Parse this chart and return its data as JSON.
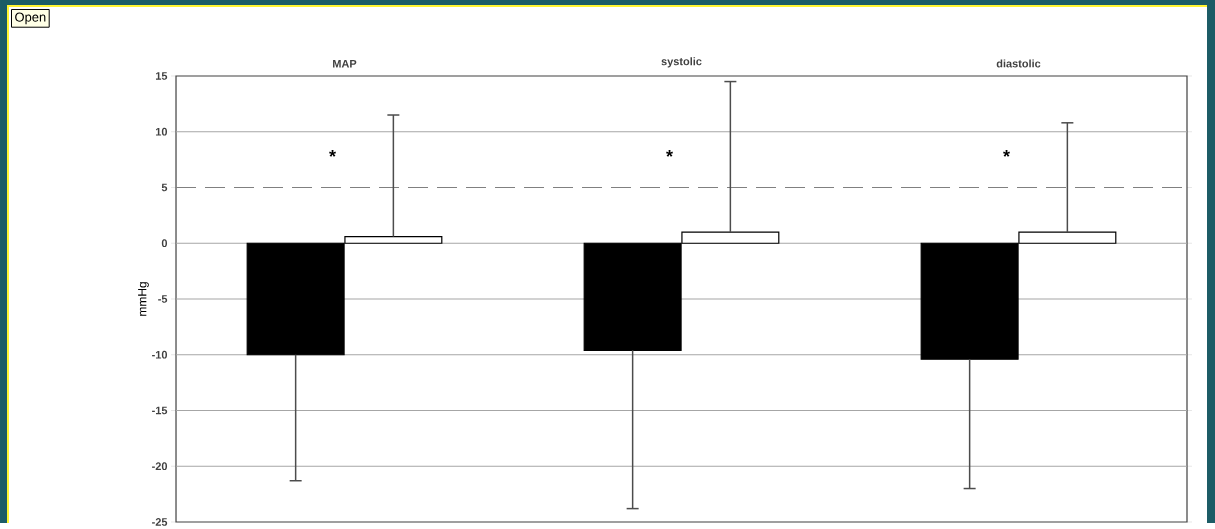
{
  "chart_data": {
    "type": "bar",
    "ylabel": "mmHg",
    "categories": [
      "MAP",
      "systolic",
      "diastolic"
    ],
    "series": [
      {
        "color": "#000000",
        "values": [
          -10,
          -9.6,
          -10.4
        ],
        "errors": [
          [
            -21.3,
            -10
          ],
          [
            -23.8,
            -9.6
          ],
          [
            -22,
            -10.4
          ]
        ]
      },
      {
        "color": "#ffffff",
        "values": [
          0.6,
          1,
          1
        ],
        "errors": [
          [
            0.6,
            11.5
          ],
          [
            1,
            14.5
          ],
          [
            1,
            10.8
          ]
        ]
      }
    ],
    "ylim": [
      -25,
      15
    ],
    "yticks": [
      -25,
      -20,
      -15,
      -10,
      -5,
      0,
      5,
      10,
      15
    ],
    "grid": "y",
    "ref_lines": [
      {
        "axis": "y",
        "value": 5,
        "color": "#808080",
        "line_style": "dashed"
      }
    ],
    "annotations": [
      "Open",
      "*",
      "*",
      "*"
    ]
  }
}
